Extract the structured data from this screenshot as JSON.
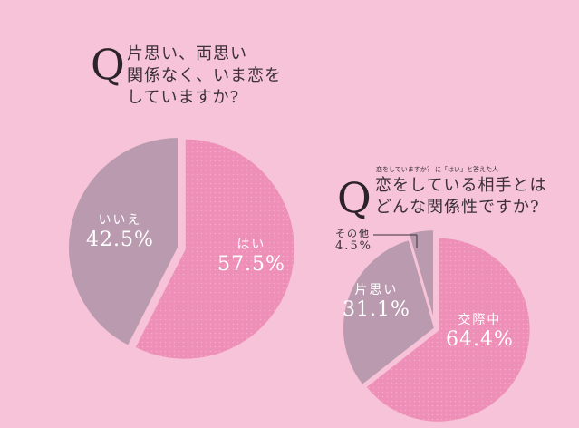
{
  "colors": {
    "background": "#f6c3d8",
    "highlight": "#ee8fb7",
    "muted": "#b99aae"
  },
  "chart_data": [
    {
      "type": "pie",
      "question_mark": "Q",
      "title_lines": [
        "片思い、両思い",
        "関係なく、いま恋を",
        "していますか?"
      ],
      "categories": [
        "はい",
        "いいえ"
      ],
      "values": [
        57.5,
        42.5
      ],
      "value_labels": [
        "57.5%",
        "42.5%"
      ]
    },
    {
      "type": "pie",
      "question_mark": "Q",
      "subtitle": "恋をしていますか？ に「はい」と答えた人",
      "title_lines": [
        "恋をしている相手とは",
        "どんな関係性ですか?"
      ],
      "categories": [
        "交際中",
        "片思い",
        "その他"
      ],
      "values": [
        64.4,
        31.1,
        4.5
      ],
      "value_labels": [
        "64.4%",
        "31.1%",
        "4.5%"
      ]
    }
  ]
}
